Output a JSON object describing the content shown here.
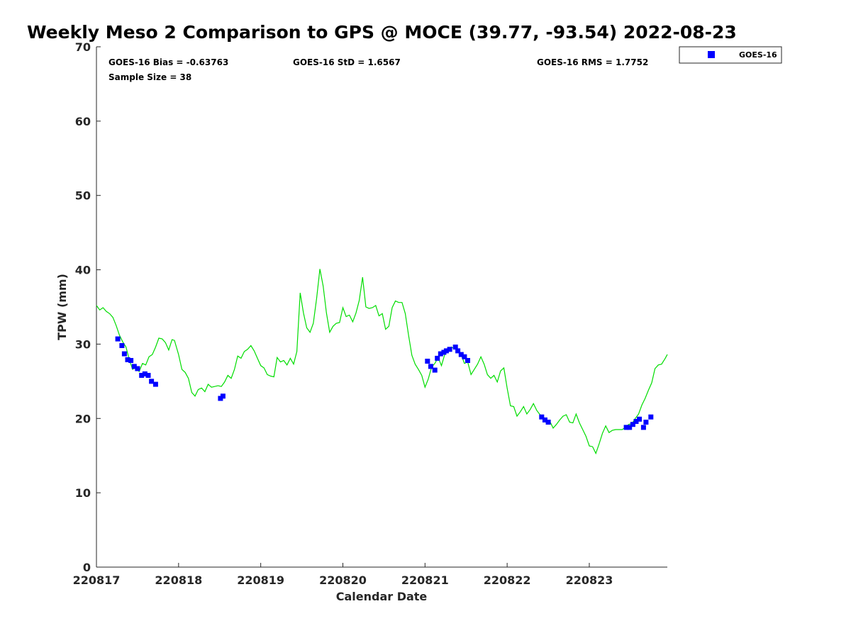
{
  "chart_data": {
    "type": "scatter",
    "title": "Weekly Meso 2 Comparison to GPS @ MOCE (39.77, -93.54) 2022-08-23",
    "xlabel": "Calendar Date",
    "ylabel": "TPW (mm)",
    "xlim": [
      0,
      6.95
    ],
    "ylim": [
      0,
      70
    ],
    "x_tick_values": [
      0,
      1,
      2,
      3,
      4,
      5,
      6
    ],
    "x_tick_labels": [
      "220817",
      "220818",
      "220819",
      "220820",
      "220821",
      "220822",
      "220823"
    ],
    "y_tick_values": [
      0,
      10,
      20,
      30,
      40,
      50,
      60,
      70
    ],
    "y_tick_labels": [
      "0",
      "10",
      "20",
      "30",
      "40",
      "50",
      "60",
      "70"
    ],
    "grid": false,
    "legend_position": "top-right outside",
    "stats": {
      "bias": "GOES-16 Bias = -0.63763",
      "std": "GOES-16 StD = 1.6567",
      "rms": "GOES-16 RMS = 1.7752",
      "sample": "Sample Size = 38"
    },
    "series": [
      {
        "name": "GOES-16",
        "kind": "markers",
        "color": "#0000ff",
        "points": [
          [
            0.26,
            30.7
          ],
          [
            0.31,
            29.8
          ],
          [
            0.34,
            28.7
          ],
          [
            0.38,
            27.9
          ],
          [
            0.42,
            27.8
          ],
          [
            0.46,
            27.0
          ],
          [
            0.5,
            26.7
          ],
          [
            0.55,
            25.8
          ],
          [
            0.59,
            26.0
          ],
          [
            0.63,
            25.8
          ],
          [
            0.67,
            25.0
          ],
          [
            0.72,
            24.6
          ],
          [
            1.51,
            22.7
          ],
          [
            1.54,
            23.0
          ],
          [
            4.03,
            27.7
          ],
          [
            4.07,
            27.0
          ],
          [
            4.12,
            26.5
          ],
          [
            4.15,
            28.1
          ],
          [
            4.19,
            28.7
          ],
          [
            4.23,
            28.9
          ],
          [
            4.26,
            29.1
          ],
          [
            4.3,
            29.3
          ],
          [
            4.37,
            29.6
          ],
          [
            4.4,
            29.1
          ],
          [
            4.44,
            28.6
          ],
          [
            4.48,
            28.3
          ],
          [
            4.52,
            27.8
          ],
          [
            5.42,
            20.2
          ],
          [
            5.46,
            19.8
          ],
          [
            5.5,
            19.5
          ],
          [
            6.45,
            18.8
          ],
          [
            6.49,
            18.8
          ],
          [
            6.53,
            19.2
          ],
          [
            6.57,
            19.6
          ],
          [
            6.61,
            19.9
          ],
          [
            6.66,
            18.8
          ],
          [
            6.69,
            19.5
          ],
          [
            6.75,
            20.2
          ]
        ]
      },
      {
        "name": "GPS",
        "kind": "line",
        "color": "#00dd00",
        "points": [
          [
            0.0,
            35.2
          ],
          [
            0.04,
            34.6
          ],
          [
            0.08,
            34.9
          ],
          [
            0.12,
            34.4
          ],
          [
            0.16,
            34.1
          ],
          [
            0.2,
            33.6
          ],
          [
            0.24,
            32.5
          ],
          [
            0.28,
            31.2
          ],
          [
            0.32,
            30.3
          ],
          [
            0.36,
            29.6
          ],
          [
            0.4,
            27.9
          ],
          [
            0.44,
            26.6
          ],
          [
            0.48,
            26.9
          ],
          [
            0.52,
            26.3
          ],
          [
            0.56,
            27.4
          ],
          [
            0.6,
            27.2
          ],
          [
            0.64,
            28.3
          ],
          [
            0.68,
            28.6
          ],
          [
            0.72,
            29.6
          ],
          [
            0.76,
            30.8
          ],
          [
            0.8,
            30.7
          ],
          [
            0.84,
            30.2
          ],
          [
            0.88,
            29.2
          ],
          [
            0.92,
            30.6
          ],
          [
            0.95,
            30.5
          ],
          [
            1.0,
            28.6
          ],
          [
            1.04,
            26.6
          ],
          [
            1.08,
            26.2
          ],
          [
            1.12,
            25.4
          ],
          [
            1.16,
            23.5
          ],
          [
            1.2,
            23.0
          ],
          [
            1.24,
            23.9
          ],
          [
            1.28,
            24.1
          ],
          [
            1.32,
            23.6
          ],
          [
            1.36,
            24.6
          ],
          [
            1.4,
            24.2
          ],
          [
            1.44,
            24.3
          ],
          [
            1.48,
            24.4
          ],
          [
            1.52,
            24.3
          ],
          [
            1.56,
            24.9
          ],
          [
            1.6,
            25.8
          ],
          [
            1.64,
            25.4
          ],
          [
            1.68,
            26.6
          ],
          [
            1.72,
            28.4
          ],
          [
            1.76,
            28.1
          ],
          [
            1.8,
            29.0
          ],
          [
            1.84,
            29.3
          ],
          [
            1.88,
            29.8
          ],
          [
            1.92,
            29.1
          ],
          [
            1.96,
            28.1
          ],
          [
            2.0,
            27.1
          ],
          [
            2.04,
            26.8
          ],
          [
            2.08,
            25.9
          ],
          [
            2.12,
            25.7
          ],
          [
            2.16,
            25.6
          ],
          [
            2.2,
            28.2
          ],
          [
            2.24,
            27.6
          ],
          [
            2.28,
            27.8
          ],
          [
            2.32,
            27.2
          ],
          [
            2.36,
            28.1
          ],
          [
            2.4,
            27.3
          ],
          [
            2.44,
            29.0
          ],
          [
            2.48,
            36.9
          ],
          [
            2.52,
            34.2
          ],
          [
            2.56,
            32.2
          ],
          [
            2.6,
            31.6
          ],
          [
            2.64,
            32.8
          ],
          [
            2.68,
            36.1
          ],
          [
            2.72,
            40.1
          ],
          [
            2.76,
            37.8
          ],
          [
            2.8,
            34.2
          ],
          [
            2.84,
            31.6
          ],
          [
            2.88,
            32.4
          ],
          [
            2.92,
            32.8
          ],
          [
            2.96,
            32.9
          ],
          [
            3.0,
            34.9
          ],
          [
            3.04,
            33.7
          ],
          [
            3.08,
            33.9
          ],
          [
            3.12,
            33.0
          ],
          [
            3.16,
            34.2
          ],
          [
            3.2,
            35.9
          ],
          [
            3.24,
            39.0
          ],
          [
            3.28,
            35.0
          ],
          [
            3.32,
            34.8
          ],
          [
            3.36,
            34.9
          ],
          [
            3.4,
            35.2
          ],
          [
            3.44,
            33.8
          ],
          [
            3.48,
            34.1
          ],
          [
            3.52,
            32.0
          ],
          [
            3.56,
            32.4
          ],
          [
            3.6,
            34.9
          ],
          [
            3.64,
            35.8
          ],
          [
            3.68,
            35.6
          ],
          [
            3.72,
            35.6
          ],
          [
            3.76,
            34.1
          ],
          [
            3.8,
            31.2
          ],
          [
            3.84,
            28.5
          ],
          [
            3.88,
            27.3
          ],
          [
            3.92,
            26.6
          ],
          [
            3.96,
            25.8
          ],
          [
            4.0,
            24.2
          ],
          [
            4.04,
            25.3
          ],
          [
            4.08,
            26.9
          ],
          [
            4.12,
            27.4
          ],
          [
            4.16,
            28.2
          ],
          [
            4.2,
            27.1
          ],
          [
            4.24,
            28.6
          ],
          [
            4.28,
            29.3
          ],
          [
            4.32,
            29.6
          ],
          [
            4.36,
            29.4
          ],
          [
            4.4,
            29.2
          ],
          [
            4.44,
            28.6
          ],
          [
            4.48,
            27.4
          ],
          [
            4.52,
            27.6
          ],
          [
            4.56,
            25.9
          ],
          [
            4.6,
            26.6
          ],
          [
            4.64,
            27.3
          ],
          [
            4.68,
            28.3
          ],
          [
            4.72,
            27.3
          ],
          [
            4.76,
            25.9
          ],
          [
            4.8,
            25.4
          ],
          [
            4.84,
            25.8
          ],
          [
            4.88,
            24.9
          ],
          [
            4.92,
            26.4
          ],
          [
            4.96,
            26.8
          ],
          [
            5.0,
            24.1
          ],
          [
            5.04,
            21.7
          ],
          [
            5.08,
            21.6
          ],
          [
            5.12,
            20.3
          ],
          [
            5.16,
            20.9
          ],
          [
            5.2,
            21.6
          ],
          [
            5.24,
            20.6
          ],
          [
            5.28,
            21.2
          ],
          [
            5.32,
            22.0
          ],
          [
            5.36,
            21.1
          ],
          [
            5.4,
            20.5
          ],
          [
            5.44,
            20.3
          ],
          [
            5.48,
            19.3
          ],
          [
            5.52,
            19.6
          ],
          [
            5.56,
            18.7
          ],
          [
            5.6,
            19.2
          ],
          [
            5.64,
            19.8
          ],
          [
            5.68,
            20.3
          ],
          [
            5.72,
            20.5
          ],
          [
            5.76,
            19.5
          ],
          [
            5.8,
            19.4
          ],
          [
            5.84,
            20.6
          ],
          [
            5.88,
            19.4
          ],
          [
            5.92,
            18.5
          ],
          [
            5.96,
            17.6
          ],
          [
            6.0,
            16.3
          ],
          [
            6.04,
            16.2
          ],
          [
            6.08,
            15.3
          ],
          [
            6.12,
            16.6
          ],
          [
            6.16,
            18.0
          ],
          [
            6.2,
            19.0
          ],
          [
            6.24,
            18.1
          ],
          [
            6.28,
            18.4
          ],
          [
            6.32,
            18.5
          ],
          [
            6.36,
            18.5
          ],
          [
            6.4,
            18.5
          ],
          [
            6.44,
            18.8
          ],
          [
            6.48,
            19.2
          ],
          [
            6.52,
            19.3
          ],
          [
            6.56,
            20.0
          ],
          [
            6.6,
            20.6
          ],
          [
            6.64,
            21.8
          ],
          [
            6.68,
            22.7
          ],
          [
            6.72,
            23.8
          ],
          [
            6.76,
            24.8
          ],
          [
            6.8,
            26.7
          ],
          [
            6.84,
            27.2
          ],
          [
            6.88,
            27.3
          ],
          [
            6.92,
            28.0
          ],
          [
            6.95,
            28.6
          ]
        ]
      }
    ],
    "legend": {
      "entries": [
        {
          "label": "GOES-16",
          "color": "#0000ff",
          "marker": "square"
        }
      ]
    }
  }
}
